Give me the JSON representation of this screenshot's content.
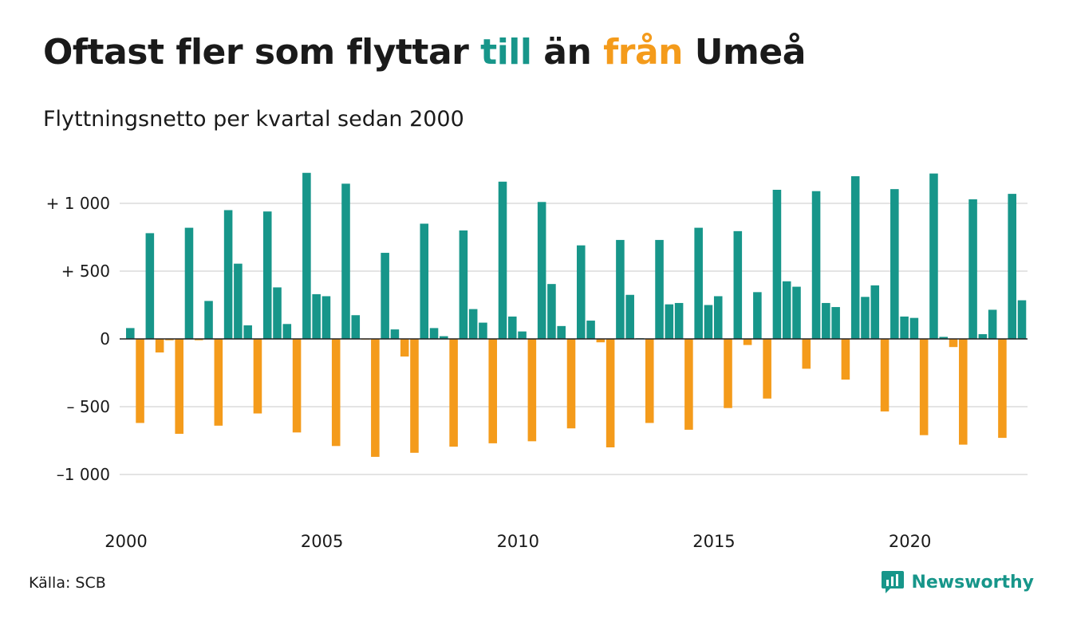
{
  "title": {
    "part1": "Oftast fler som flyttar ",
    "word_to": "till",
    "part2": " än ",
    "word_from": "från",
    "part3": " Umeå"
  },
  "subtitle": "Flyttningsnetto per kvartal sedan 2000",
  "source": "Källa: SCB",
  "brand": "Newsworthy",
  "colors": {
    "positive": "#17968a",
    "negative": "#f49b1b",
    "grid": "#dcdcdc",
    "baseline": "#222222",
    "text": "#1a1a1a"
  },
  "chart_data": {
    "type": "bar",
    "title": "Oftast fler som flyttar till än från Umeå",
    "subtitle": "Flyttningsnetto per kvartal sedan 2000",
    "x_start": "2000 Q1",
    "frequency": "quarter",
    "values": [
      80,
      -620,
      780,
      -100,
      -10,
      -700,
      820,
      -10,
      280,
      -640,
      950,
      555,
      100,
      -550,
      940,
      380,
      110,
      -690,
      1225,
      330,
      315,
      -790,
      1145,
      175,
      -5,
      -870,
      635,
      70,
      -130,
      -840,
      850,
      80,
      20,
      -795,
      800,
      220,
      120,
      -770,
      1160,
      165,
      55,
      -755,
      1010,
      405,
      95,
      -660,
      690,
      135,
      -25,
      -800,
      730,
      325,
      5,
      -620,
      730,
      255,
      265,
      -670,
      820,
      250,
      315,
      -510,
      795,
      -45,
      345,
      -440,
      1100,
      425,
      385,
      -220,
      1090,
      265,
      235,
      -300,
      1200,
      310,
      395,
      -535,
      1105,
      165,
      155,
      -710,
      1220,
      15,
      -60,
      -780,
      1030,
      35,
      215,
      -730,
      1070,
      285
    ],
    "x_tick_labels": [
      "2000",
      "2005",
      "2010",
      "2015",
      "2020"
    ],
    "y_ticks": [
      1000,
      500,
      0,
      -500,
      -1000
    ],
    "y_tick_labels": [
      "+ 1 000",
      "+   500",
      "0",
      "–  500",
      "–1 000"
    ],
    "ylim": [
      -1350,
      1350
    ],
    "grid": true,
    "legend": "none"
  }
}
